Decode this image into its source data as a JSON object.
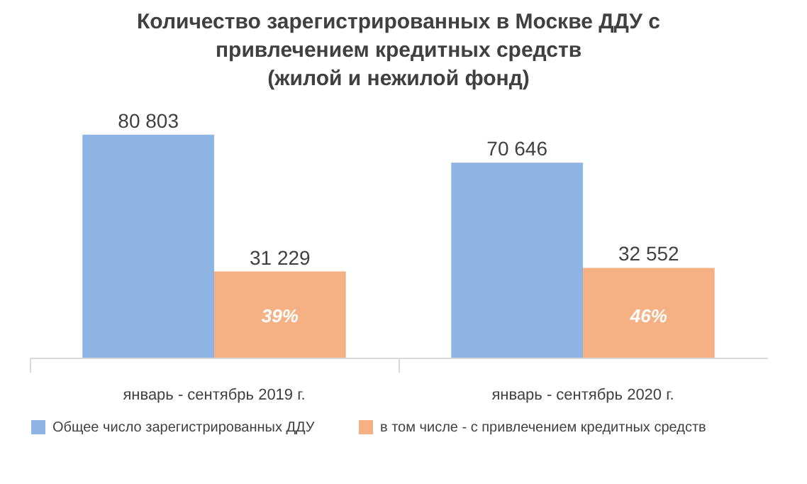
{
  "chart_data": {
    "type": "bar",
    "title": "Количество зарегистрированных в Москве ДДУ с привлечением кредитных средств (жилой и нежилой фонд)",
    "categories": [
      "январь - сентябрь 2019 г.",
      "январь - сентябрь 2020 г."
    ],
    "series": [
      {
        "name": "Общее число зарегистрированных ДДУ",
        "color": "#8eb4e3",
        "values": [
          80803,
          70646
        ],
        "value_labels": [
          "80 803",
          "70 646"
        ]
      },
      {
        "name": "в том числе - с привлечением кредитных средств",
        "color": "#f5b183",
        "values": [
          31229,
          32552
        ],
        "value_labels": [
          "31 229",
          "32 552"
        ]
      }
    ],
    "annotations": [
      {
        "text": "39%",
        "x": "январь - сентябрь 2019 г.",
        "y": 15000
      },
      {
        "text": "46%",
        "x": "январь - сентябрь 2020 г.",
        "y": 15000
      }
    ],
    "legend": "bottom"
  }
}
